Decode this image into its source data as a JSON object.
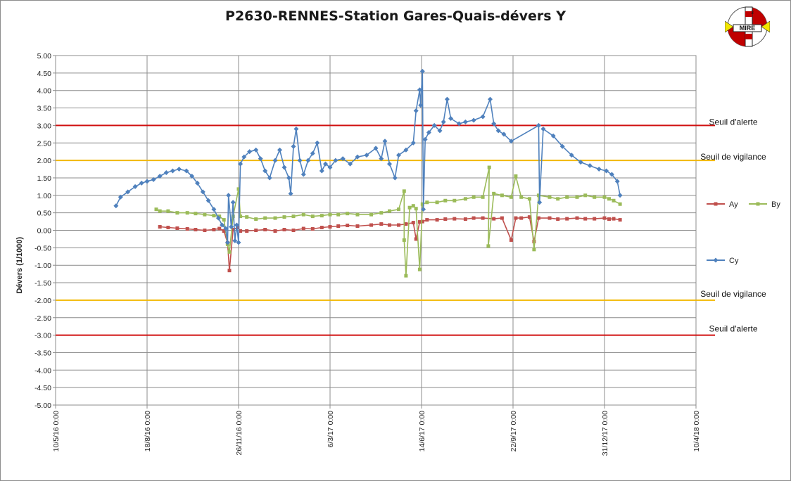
{
  "chart_data": {
    "type": "scatter",
    "title": "P2630-RENNES-Station Gares-Quais-dévers Y",
    "ylabel": "Dévers (1/1000)",
    "xlabel": "",
    "ylim": [
      -5,
      5
    ],
    "ytick_step": 0.5,
    "yticks": [
      "5.00",
      "4.50",
      "4.00",
      "3.50",
      "3.00",
      "2.50",
      "2.00",
      "1.50",
      "1.00",
      "0.50",
      "0.00",
      "-0.50",
      "-1.00",
      "-1.50",
      "-2.00",
      "-2.50",
      "-3.00",
      "-3.50",
      "-4.00",
      "-4.50",
      "-5.00"
    ],
    "x_axis": {
      "type": "date",
      "range": [
        "2016-05-10",
        "2018-04-10"
      ],
      "tick_labels": [
        "10/5/16 0:00",
        "18/8/16 0:00",
        "26/11/16 0:00",
        "6/3/17 0:00",
        "14/6/17 0:00",
        "22/9/17 0:00",
        "31/12/17 0:00",
        "10/4/18 0:00"
      ],
      "tick_dates": [
        "2016-05-10",
        "2016-08-18",
        "2016-11-26",
        "2017-03-06",
        "2017-06-14",
        "2017-09-22",
        "2017-12-31",
        "2018-04-10"
      ]
    },
    "grid": true,
    "legend_placement": "right",
    "thresholds": [
      {
        "label": "Seuil d'alerte",
        "value": 3.0,
        "color": "#d01010"
      },
      {
        "label": "Seuil de vigilance",
        "value": 2.0,
        "color": "#f2b800"
      },
      {
        "label": "Seuil de vigilance",
        "value": -2.0,
        "color": "#f2b800"
      },
      {
        "label": "Seuil d'alerte",
        "value": -3.0,
        "color": "#d01010"
      }
    ],
    "series": [
      {
        "name": "Ay",
        "color": "#c0504d",
        "marker": "square",
        "points": [
          [
            "2016-09-01",
            0.1
          ],
          [
            "2016-09-10",
            0.08
          ],
          [
            "2016-09-20",
            0.06
          ],
          [
            "2016-10-01",
            0.04
          ],
          [
            "2016-10-10",
            0.02
          ],
          [
            "2016-10-20",
            0.0
          ],
          [
            "2016-10-30",
            0.02
          ],
          [
            "2016-11-05",
            0.05
          ],
          [
            "2016-11-10",
            -0.02
          ],
          [
            "2016-11-14",
            -0.36
          ],
          [
            "2016-11-16",
            -1.15
          ],
          [
            "2016-11-20",
            0.02
          ],
          [
            "2016-11-25",
            0.08
          ],
          [
            "2016-11-28",
            -0.02
          ],
          [
            "2016-12-05",
            -0.02
          ],
          [
            "2016-12-15",
            0.0
          ],
          [
            "2016-12-25",
            0.02
          ],
          [
            "2017-01-05",
            -0.02
          ],
          [
            "2017-01-15",
            0.02
          ],
          [
            "2017-01-25",
            0.0
          ],
          [
            "2017-02-05",
            0.05
          ],
          [
            "2017-02-15",
            0.04
          ],
          [
            "2017-02-25",
            0.08
          ],
          [
            "2017-03-06",
            0.1
          ],
          [
            "2017-03-15",
            0.12
          ],
          [
            "2017-03-25",
            0.14
          ],
          [
            "2017-04-05",
            0.12
          ],
          [
            "2017-04-20",
            0.15
          ],
          [
            "2017-05-01",
            0.18
          ],
          [
            "2017-05-10",
            0.15
          ],
          [
            "2017-05-20",
            0.15
          ],
          [
            "2017-05-28",
            0.18
          ],
          [
            "2017-06-05",
            0.22
          ],
          [
            "2017-06-08",
            -0.25
          ],
          [
            "2017-06-12",
            0.24
          ],
          [
            "2017-06-15",
            0.25
          ],
          [
            "2017-06-20",
            0.3
          ],
          [
            "2017-07-01",
            0.3
          ],
          [
            "2017-07-10",
            0.32
          ],
          [
            "2017-07-20",
            0.33
          ],
          [
            "2017-08-01",
            0.32
          ],
          [
            "2017-08-10",
            0.35
          ],
          [
            "2017-08-20",
            0.35
          ],
          [
            "2017-09-01",
            0.33
          ],
          [
            "2017-09-10",
            0.35
          ],
          [
            "2017-09-20",
            -0.28
          ],
          [
            "2017-09-25",
            0.35
          ],
          [
            "2017-10-01",
            0.35
          ],
          [
            "2017-10-10",
            0.38
          ],
          [
            "2017-10-15",
            -0.32
          ],
          [
            "2017-10-20",
            0.35
          ],
          [
            "2017-11-01",
            0.35
          ],
          [
            "2017-11-10",
            0.32
          ],
          [
            "2017-11-20",
            0.33
          ],
          [
            "2017-12-01",
            0.35
          ],
          [
            "2017-12-10",
            0.33
          ],
          [
            "2017-12-20",
            0.33
          ],
          [
            "2017-12-31",
            0.35
          ],
          [
            "2018-01-05",
            0.32
          ],
          [
            "2018-01-10",
            0.33
          ],
          [
            "2018-01-17",
            0.3
          ]
        ]
      },
      {
        "name": "By",
        "color": "#9bbb59",
        "marker": "square",
        "points": [
          [
            "2016-08-28",
            0.6
          ],
          [
            "2016-09-01",
            0.55
          ],
          [
            "2016-09-10",
            0.55
          ],
          [
            "2016-09-20",
            0.5
          ],
          [
            "2016-10-01",
            0.5
          ],
          [
            "2016-10-10",
            0.48
          ],
          [
            "2016-10-20",
            0.45
          ],
          [
            "2016-10-30",
            0.42
          ],
          [
            "2016-11-05",
            0.4
          ],
          [
            "2016-11-10",
            0.3
          ],
          [
            "2016-11-14",
            -0.4
          ],
          [
            "2016-11-16",
            -0.62
          ],
          [
            "2016-11-20",
            0.4
          ],
          [
            "2016-11-26",
            1.18
          ],
          [
            "2016-11-28",
            0.4
          ],
          [
            "2016-12-05",
            0.38
          ],
          [
            "2016-12-15",
            0.32
          ],
          [
            "2016-12-25",
            0.35
          ],
          [
            "2017-01-05",
            0.35
          ],
          [
            "2017-01-15",
            0.38
          ],
          [
            "2017-01-25",
            0.4
          ],
          [
            "2017-02-05",
            0.45
          ],
          [
            "2017-02-15",
            0.4
          ],
          [
            "2017-02-25",
            0.42
          ],
          [
            "2017-03-06",
            0.45
          ],
          [
            "2017-03-15",
            0.45
          ],
          [
            "2017-03-25",
            0.48
          ],
          [
            "2017-04-05",
            0.45
          ],
          [
            "2017-04-20",
            0.45
          ],
          [
            "2017-05-01",
            0.5
          ],
          [
            "2017-05-10",
            0.55
          ],
          [
            "2017-05-20",
            0.6
          ],
          [
            "2017-05-26",
            1.12
          ],
          [
            "2017-05-26",
            -0.28
          ],
          [
            "2017-05-28",
            -1.3
          ],
          [
            "2017-06-01",
            0.65
          ],
          [
            "2017-06-05",
            0.7
          ],
          [
            "2017-06-08",
            0.62
          ],
          [
            "2017-06-12",
            -1.12
          ],
          [
            "2017-06-15",
            0.75
          ],
          [
            "2017-06-20",
            0.8
          ],
          [
            "2017-07-01",
            0.8
          ],
          [
            "2017-07-10",
            0.85
          ],
          [
            "2017-07-20",
            0.85
          ],
          [
            "2017-08-01",
            0.9
          ],
          [
            "2017-08-10",
            0.95
          ],
          [
            "2017-08-20",
            0.95
          ],
          [
            "2017-08-27",
            1.8
          ],
          [
            "2017-08-26",
            -0.45
          ],
          [
            "2017-09-01",
            1.05
          ],
          [
            "2017-09-10",
            1.0
          ],
          [
            "2017-09-20",
            0.95
          ],
          [
            "2017-09-25",
            1.55
          ],
          [
            "2017-10-01",
            0.95
          ],
          [
            "2017-10-10",
            0.9
          ],
          [
            "2017-10-15",
            -0.55
          ],
          [
            "2017-10-20",
            1.0
          ],
          [
            "2017-11-01",
            0.95
          ],
          [
            "2017-11-10",
            0.9
          ],
          [
            "2017-11-20",
            0.95
          ],
          [
            "2017-12-01",
            0.95
          ],
          [
            "2017-12-10",
            1.0
          ],
          [
            "2017-12-20",
            0.95
          ],
          [
            "2017-12-31",
            0.95
          ],
          [
            "2018-01-05",
            0.9
          ],
          [
            "2018-01-10",
            0.85
          ],
          [
            "2018-01-17",
            0.75
          ]
        ]
      },
      {
        "name": "Cy",
        "color": "#4f81bd",
        "marker": "diamond",
        "points": [
          [
            "2016-07-15",
            0.7
          ],
          [
            "2016-07-20",
            0.95
          ],
          [
            "2016-07-28",
            1.1
          ],
          [
            "2016-08-05",
            1.25
          ],
          [
            "2016-08-12",
            1.35
          ],
          [
            "2016-08-18",
            1.4
          ],
          [
            "2016-08-25",
            1.45
          ],
          [
            "2016-09-01",
            1.55
          ],
          [
            "2016-09-08",
            1.65
          ],
          [
            "2016-09-15",
            1.7
          ],
          [
            "2016-09-22",
            1.75
          ],
          [
            "2016-09-30",
            1.7
          ],
          [
            "2016-10-06",
            1.55
          ],
          [
            "2016-10-12",
            1.35
          ],
          [
            "2016-10-18",
            1.1
          ],
          [
            "2016-10-24",
            0.85
          ],
          [
            "2016-10-30",
            0.6
          ],
          [
            "2016-11-04",
            0.35
          ],
          [
            "2016-11-08",
            0.15
          ],
          [
            "2016-11-12",
            0.05
          ],
          [
            "2016-11-14",
            -0.35
          ],
          [
            "2016-11-15",
            1.0
          ],
          [
            "2016-11-18",
            0.1
          ],
          [
            "2016-11-20",
            0.8
          ],
          [
            "2016-11-22",
            -0.3
          ],
          [
            "2016-11-24",
            0.15
          ],
          [
            "2016-11-26",
            -0.35
          ],
          [
            "2016-11-28",
            1.9
          ],
          [
            "2016-12-02",
            2.1
          ],
          [
            "2016-12-08",
            2.25
          ],
          [
            "2016-12-15",
            2.3
          ],
          [
            "2016-12-20",
            2.05
          ],
          [
            "2016-12-25",
            1.7
          ],
          [
            "2016-12-30",
            1.5
          ],
          [
            "2017-01-05",
            2.0
          ],
          [
            "2017-01-10",
            2.3
          ],
          [
            "2017-01-15",
            1.8
          ],
          [
            "2017-01-20",
            1.5
          ],
          [
            "2017-01-22",
            1.05
          ],
          [
            "2017-01-25",
            2.4
          ],
          [
            "2017-01-28",
            2.9
          ],
          [
            "2017-02-01",
            2.0
          ],
          [
            "2017-02-05",
            1.6
          ],
          [
            "2017-02-10",
            2.0
          ],
          [
            "2017-02-15",
            2.2
          ],
          [
            "2017-02-20",
            2.5
          ],
          [
            "2017-02-25",
            1.7
          ],
          [
            "2017-03-01",
            1.9
          ],
          [
            "2017-03-06",
            1.8
          ],
          [
            "2017-03-12",
            2.0
          ],
          [
            "2017-03-20",
            2.05
          ],
          [
            "2017-03-28",
            1.9
          ],
          [
            "2017-04-05",
            2.1
          ],
          [
            "2017-04-15",
            2.15
          ],
          [
            "2017-04-25",
            2.35
          ],
          [
            "2017-05-01",
            2.05
          ],
          [
            "2017-05-05",
            2.55
          ],
          [
            "2017-05-10",
            1.9
          ],
          [
            "2017-05-16",
            1.5
          ],
          [
            "2017-05-20",
            2.15
          ],
          [
            "2017-05-28",
            2.3
          ],
          [
            "2017-06-05",
            2.5
          ],
          [
            "2017-06-08",
            3.42
          ],
          [
            "2017-06-12",
            4.02
          ],
          [
            "2017-06-13",
            3.58
          ],
          [
            "2017-06-15",
            4.55
          ],
          [
            "2017-06-16",
            0.6
          ],
          [
            "2017-06-18",
            2.6
          ],
          [
            "2017-06-22",
            2.8
          ],
          [
            "2017-06-28",
            3.0
          ],
          [
            "2017-07-04",
            2.85
          ],
          [
            "2017-07-08",
            3.1
          ],
          [
            "2017-07-12",
            3.75
          ],
          [
            "2017-07-16",
            3.2
          ],
          [
            "2017-07-25",
            3.05
          ],
          [
            "2017-08-01",
            3.1
          ],
          [
            "2017-08-10",
            3.15
          ],
          [
            "2017-08-20",
            3.25
          ],
          [
            "2017-08-28",
            3.75
          ],
          [
            "2017-09-01",
            3.05
          ],
          [
            "2017-09-06",
            2.85
          ],
          [
            "2017-09-12",
            2.75
          ],
          [
            "2017-09-20",
            2.55
          ],
          [
            "2017-10-20",
            3.0
          ],
          [
            "2017-10-21",
            0.8
          ],
          [
            "2017-10-25",
            2.9
          ],
          [
            "2017-11-05",
            2.7
          ],
          [
            "2017-11-15",
            2.4
          ],
          [
            "2017-11-25",
            2.15
          ],
          [
            "2017-12-05",
            1.95
          ],
          [
            "2017-12-15",
            1.85
          ],
          [
            "2017-12-25",
            1.75
          ],
          [
            "2018-01-02",
            1.7
          ],
          [
            "2018-01-08",
            1.6
          ],
          [
            "2018-01-14",
            1.4
          ],
          [
            "2018-01-17",
            1.0
          ]
        ]
      }
    ]
  }
}
